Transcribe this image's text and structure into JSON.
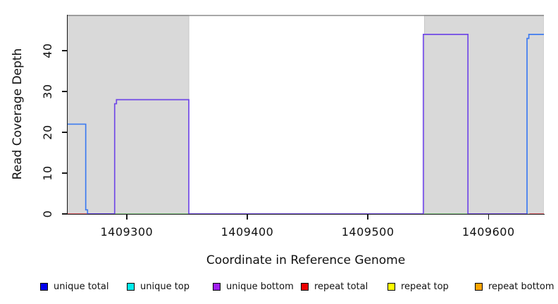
{
  "figure": {
    "xlabel": "Coordinate in Reference Genome",
    "ylabel": "Read Coverage Depth"
  },
  "chart_data": {
    "type": "line",
    "title": "",
    "xlabel": "Coordinate in Reference Genome",
    "ylabel": "Read Coverage Depth",
    "xlim": [
      1409251,
      1409646
    ],
    "ylim": [
      0,
      48.8
    ],
    "xticks": [
      1409300,
      1409400,
      1409500,
      1409600
    ],
    "yticks": [
      0,
      10,
      20,
      30,
      40
    ],
    "grid": false,
    "plot_background": "#FFFFFF",
    "shaded_region_fill": "#D9D9D9",
    "shaded_region_edge": "#C6C6C6",
    "top_border_color": "#8C8C8C",
    "shaded_regions": [
      {
        "x0": 1409251,
        "x1": 1409351.5
      },
      {
        "x0": 1409547,
        "x1": 1409646
      }
    ],
    "series": [
      {
        "name": "repeat total",
        "color": "#E8636C",
        "segments": [
          [
            [
              1409251,
              0
            ],
            [
              1409267,
              0
            ]
          ],
          [
            [
              1409634,
              0
            ],
            [
              1409646,
              0
            ]
          ]
        ]
      },
      {
        "name": "green zero line",
        "color": "#8FD68F",
        "segments": [
          [
            [
              1409290,
              0
            ],
            [
              1409351.5,
              0
            ]
          ],
          [
            [
              1409547,
              0
            ],
            [
              1409583,
              0
            ]
          ]
        ]
      },
      {
        "name": "unique total",
        "color": "#3E7BF0",
        "segments": [
          [
            [
              1409251,
              22
            ],
            [
              1409266,
              22
            ],
            [
              1409266,
              1
            ],
            [
              1409267.5,
              1
            ],
            [
              1409267.5,
              0
            ],
            [
              1409290,
              0
            ]
          ],
          [
            [
              1409632,
              0
            ],
            [
              1409632,
              43
            ],
            [
              1409633.5,
              43
            ],
            [
              1409633.5,
              44
            ],
            [
              1409646,
              44
            ]
          ]
        ]
      },
      {
        "name": "unique bottom",
        "color": "#7149E6",
        "segments": [
          [
            [
              1409267.5,
              0
            ],
            [
              1409290,
              0
            ],
            [
              1409290,
              27
            ],
            [
              1409291.5,
              27
            ],
            [
              1409291.5,
              28
            ],
            [
              1409351.5,
              28
            ],
            [
              1409351.5,
              0
            ],
            [
              1409546,
              0
            ],
            [
              1409546,
              44
            ],
            [
              1409583,
              44
            ],
            [
              1409583,
              0
            ],
            [
              1409632,
              0
            ]
          ]
        ]
      }
    ],
    "legend_position": "bottom",
    "legend": [
      {
        "label": "unique total",
        "color": "#0000EE"
      },
      {
        "label": "unique top",
        "color": "#00EEEE"
      },
      {
        "label": "unique bottom",
        "color": "#A020F0"
      },
      {
        "label": "repeat total",
        "color": "#EE0000"
      },
      {
        "label": "repeat top",
        "color": "#FFFF00"
      },
      {
        "label": "repeat bottom",
        "color": "#FFA500"
      }
    ]
  }
}
